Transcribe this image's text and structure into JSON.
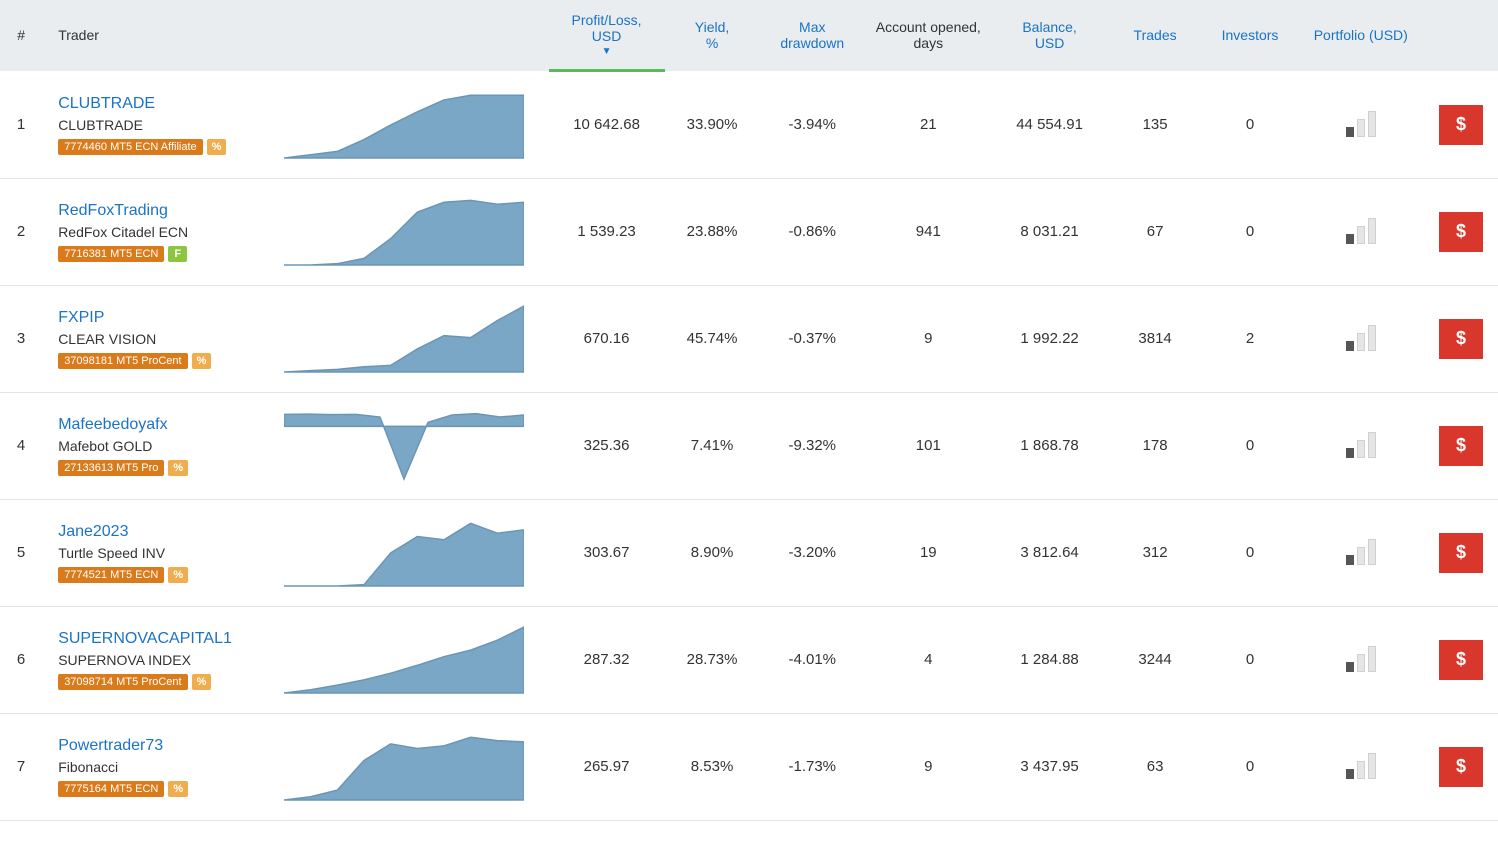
{
  "colors": {
    "header_bg": "#e9edf0",
    "link": "#1a73c7",
    "sort_underline": "#5cb85c",
    "row_border": "#e5e5e5",
    "badge_acct_bg": "#d97b1a",
    "badge_pct_bg": "#f0ad4e",
    "badge_f_bg": "#8cc63f",
    "invest_btn_bg": "#d9372b",
    "spark_fill": "#7ba7c7",
    "spark_stroke": "#6b95b5",
    "portfolio_bar_empty": "#e5e5e5",
    "portfolio_bar_filled": "#555555"
  },
  "headers": {
    "num": "#",
    "trader": "Trader",
    "profit_loss": "Profit/Loss, USD",
    "yield": "Yield,\n%",
    "max_drawdown": "Max\ndrawdown",
    "account_opened": "Account opened,\ndays",
    "balance": "Balance,\nUSD",
    "trades": "Trades",
    "investors": "Investors",
    "portfolio": "Portfolio (USD)"
  },
  "sort": {
    "active_column": "profit_loss",
    "direction": "desc"
  },
  "portfolio_bars": {
    "count": 3,
    "heights": [
      10,
      18,
      26
    ]
  },
  "action_button_label": "$",
  "rows": [
    {
      "num": "1",
      "trader_name": "CLUBTRADE",
      "account_name": "CLUBTRADE",
      "acct_badge": "7774460 MT5 ECN Affiliate",
      "extra_badge": "%",
      "extra_badge_type": "pct",
      "profit_loss": "10 642.68",
      "yield": "33.90%",
      "max_drawdown": "-3.94%",
      "days": "21",
      "balance": "44 554.91",
      "trades": "135",
      "investors": "0",
      "portfolio_level": 1,
      "spark": {
        "type": "area",
        "points": [
          0,
          5,
          10,
          28,
          50,
          70,
          88,
          95,
          95,
          95
        ],
        "baseline": 0
      }
    },
    {
      "num": "2",
      "trader_name": "RedFoxTrading",
      "account_name": "RedFox Citadel ECN",
      "acct_badge": "7716381 MT5 ECN",
      "extra_badge": "F",
      "extra_badge_type": "f",
      "profit_loss": "1 539.23",
      "yield": "23.88%",
      "max_drawdown": "-0.86%",
      "days": "941",
      "balance": "8 031.21",
      "trades": "67",
      "investors": "0",
      "portfolio_level": 1,
      "spark": {
        "type": "area",
        "points": [
          0,
          0,
          2,
          10,
          40,
          80,
          95,
          98,
          92,
          95
        ],
        "baseline": 0
      }
    },
    {
      "num": "3",
      "trader_name": "FXPIP",
      "account_name": "CLEAR VISION",
      "acct_badge": "37098181 MT5 ProCent",
      "extra_badge": "%",
      "extra_badge_type": "pct",
      "profit_loss": "670.16",
      "yield": "45.74%",
      "max_drawdown": "-0.37%",
      "days": "9",
      "balance": "1 992.22",
      "trades": "3814",
      "investors": "2",
      "portfolio_level": 1,
      "spark": {
        "type": "area",
        "points": [
          0,
          2,
          4,
          8,
          10,
          35,
          55,
          52,
          78,
          100
        ],
        "baseline": 0
      }
    },
    {
      "num": "4",
      "trader_name": "Mafeebedoyafx",
      "account_name": "Mafebot GOLD",
      "acct_badge": "27133613 MT5 Pro",
      "extra_badge": "%",
      "extra_badge_type": "pct",
      "profit_loss": "325.36",
      "yield": "7.41%",
      "max_drawdown": "-9.32%",
      "days": "101",
      "balance": "1 868.78",
      "trades": "178",
      "investors": "0",
      "portfolio_level": 1,
      "spark": {
        "type": "area-bi",
        "points": [
          90,
          92,
          88,
          90,
          70,
          -100,
          30,
          85,
          95,
          70,
          85
        ],
        "baseline": 0
      }
    },
    {
      "num": "5",
      "trader_name": "Jane2023",
      "account_name": "Turtle Speed INV",
      "acct_badge": "7774521 MT5 ECN",
      "extra_badge": "%",
      "extra_badge_type": "pct",
      "profit_loss": "303.67",
      "yield": "8.90%",
      "max_drawdown": "-3.20%",
      "days": "19",
      "balance": "3 812.64",
      "trades": "312",
      "investors": "0",
      "portfolio_level": 1,
      "spark": {
        "type": "area",
        "points": [
          0,
          0,
          0,
          2,
          50,
          75,
          70,
          95,
          80,
          85
        ],
        "baseline": 0
      }
    },
    {
      "num": "6",
      "trader_name": "SUPERNOVACAPITAL1",
      "account_name": "SUPERNOVA INDEX",
      "acct_badge": "37098714 MT5 ProCent",
      "extra_badge": "%",
      "extra_badge_type": "pct",
      "profit_loss": "287.32",
      "yield": "28.73%",
      "max_drawdown": "-4.01%",
      "days": "4",
      "balance": "1 284.88",
      "trades": "3244",
      "investors": "0",
      "portfolio_level": 1,
      "spark": {
        "type": "area",
        "points": [
          0,
          5,
          12,
          20,
          30,
          42,
          55,
          65,
          80,
          100
        ],
        "baseline": 0
      }
    },
    {
      "num": "7",
      "trader_name": "Powertrader73",
      "account_name": "Fibonacci",
      "acct_badge": "7775164 MT5 ECN",
      "extra_badge": "%",
      "extra_badge_type": "pct",
      "profit_loss": "265.97",
      "yield": "8.53%",
      "max_drawdown": "-1.73%",
      "days": "9",
      "balance": "3 437.95",
      "trades": "63",
      "investors": "0",
      "portfolio_level": 1,
      "spark": {
        "type": "area",
        "points": [
          0,
          5,
          15,
          60,
          85,
          78,
          82,
          95,
          90,
          88
        ],
        "baseline": 0
      }
    }
  ]
}
